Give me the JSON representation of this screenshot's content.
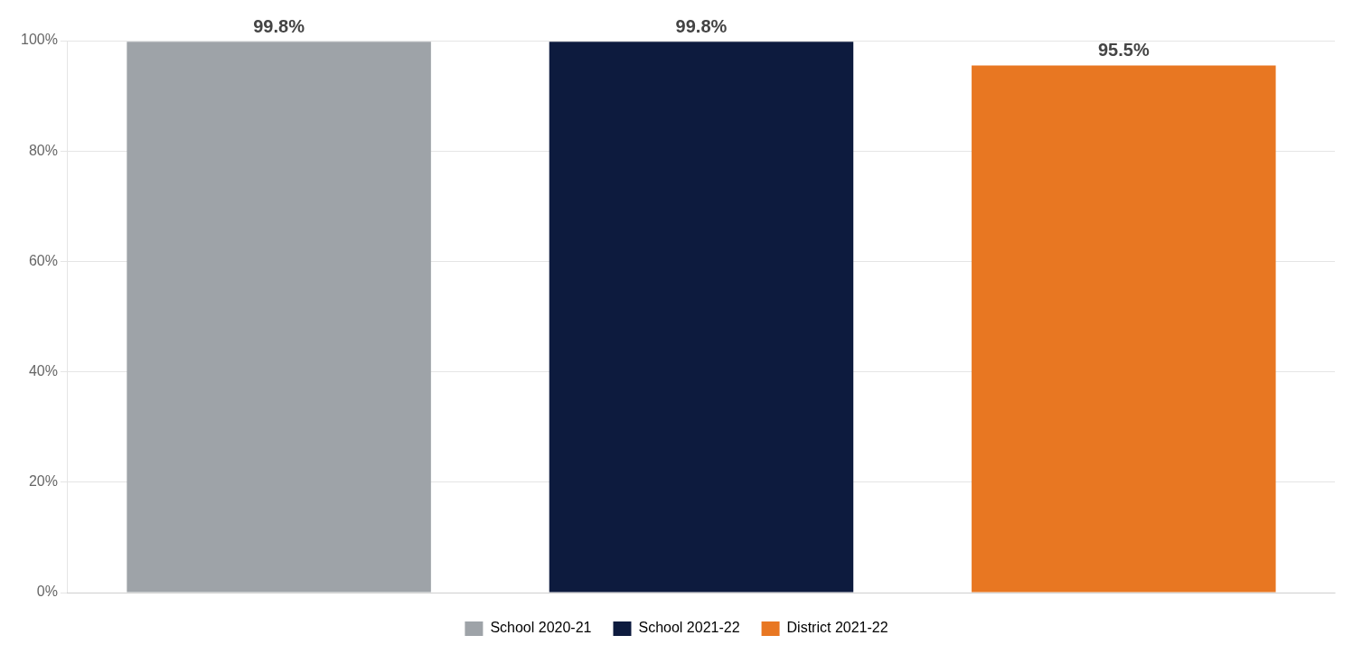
{
  "chart_data": {
    "type": "bar",
    "categories": [
      "School 2020-21",
      "School 2021-22",
      "District 2021-22"
    ],
    "values": [
      99.8,
      99.8,
      95.5
    ],
    "value_labels": [
      "99.8%",
      "99.8%",
      "95.5%"
    ],
    "colors": [
      "#9EA3A8",
      "#0D1B3E",
      "#E87722"
    ],
    "ylim": [
      0,
      100
    ],
    "yticks": [
      {
        "value": 0,
        "label": "0%"
      },
      {
        "value": 20,
        "label": "20%"
      },
      {
        "value": 40,
        "label": "40%"
      },
      {
        "value": 60,
        "label": "60%"
      },
      {
        "value": 80,
        "label": "80%"
      },
      {
        "value": 100,
        "label": "100%"
      }
    ],
    "grid": true,
    "legend": "bottom",
    "data_labels": true,
    "tick_labels": "y"
  }
}
